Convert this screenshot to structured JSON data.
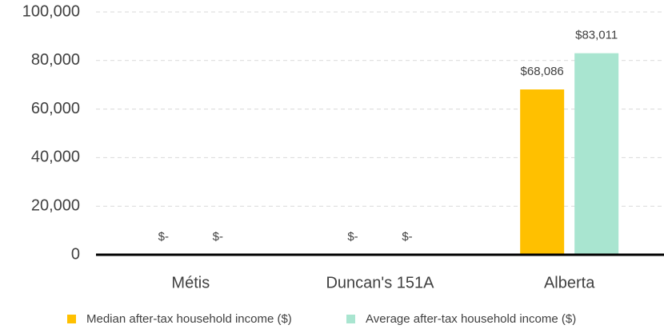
{
  "chart_data": {
    "type": "bar",
    "categories": [
      "Métis",
      "Duncan's 151A",
      "Alberta"
    ],
    "series": [
      {
        "name": "Median after-tax household income ($)",
        "color": "#ffc000",
        "values": [
          0,
          0,
          68086
        ],
        "value_labels": [
          "$-",
          "$-",
          "$68,086"
        ]
      },
      {
        "name": "Average after-tax household income ($)",
        "color": "#a9e5d0",
        "values": [
          0,
          0,
          83011
        ],
        "value_labels": [
          "$-",
          "$-",
          "$83,011"
        ]
      }
    ],
    "ylim": [
      0,
      100000
    ],
    "yticks": [
      0,
      {
        "value": 20000,
        "label": "20,000"
      },
      {
        "value": 40000,
        "label": "40,000"
      },
      {
        "value": 60000,
        "label": "60,000"
      },
      {
        "value": 80000,
        "label": "80,000"
      },
      {
        "value": 100000,
        "label": "100,000"
      }
    ],
    "grid": true,
    "legend": "bottom"
  }
}
